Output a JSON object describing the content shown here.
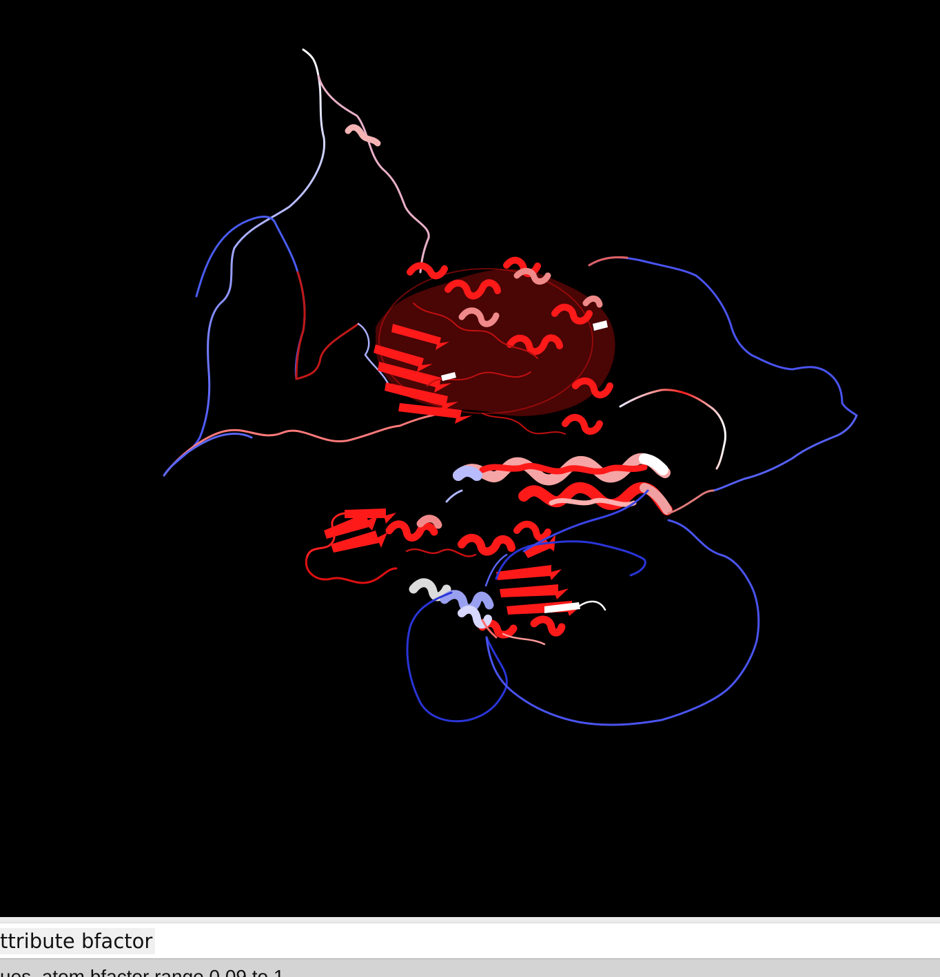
{
  "viewer": {
    "background": "#000000",
    "palette": {
      "high": "#ff1a1a",
      "mid": "#ffffff",
      "low": "#3a46ff",
      "pale": "#f4b4b4"
    }
  },
  "command_line": {
    "text": "ttribute bfactor"
  },
  "status_bar": {
    "text": "ues, atom bfactor range 0.09 to 1"
  }
}
